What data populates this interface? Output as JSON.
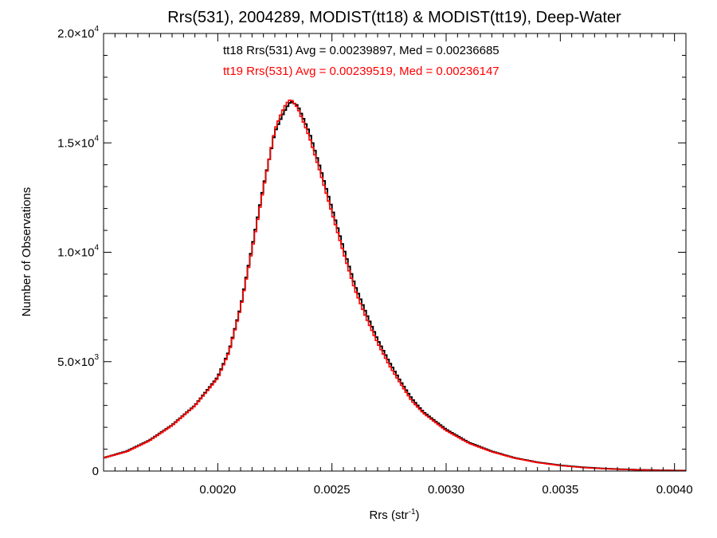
{
  "chart_data": {
    "type": "line",
    "title": "Rrs(531), 2004289, MODIST(tt18) & MODIST(tt19), Deep-Water",
    "xlabel": {
      "base": "Rrs (str",
      "sup": "-1",
      "tail": ")"
    },
    "ylabel": "Number of Observations",
    "xlim": [
      0.0015,
      0.00405
    ],
    "ylim": [
      0,
      20000
    ],
    "x_ticks": [
      {
        "value": 0.002,
        "label": "0.0020"
      },
      {
        "value": 0.0025,
        "label": "0.0025"
      },
      {
        "value": 0.003,
        "label": "0.0030"
      },
      {
        "value": 0.0035,
        "label": "0.0035"
      },
      {
        "value": 0.004,
        "label": "0.0040"
      }
    ],
    "y_ticks": [
      {
        "value": 0,
        "mant": "0",
        "exp": ""
      },
      {
        "value": 5000,
        "mant": "5.0×10",
        "exp": "3"
      },
      {
        "value": 10000,
        "mant": "1.0×10",
        "exp": "4"
      },
      {
        "value": 15000,
        "mant": "1.5×10",
        "exp": "4"
      },
      {
        "value": 20000,
        "mant": "2.0×10",
        "exp": "4"
      }
    ],
    "annotations": [
      {
        "text": "tt18 Rrs(531) Avg = 0.00239897, Med = 0.00236685",
        "color": "#000000"
      },
      {
        "text": "tt19 Rrs(531) Avg = 0.00239519, Med = 0.00236147",
        "color": "#ff0000"
      }
    ],
    "grid": false,
    "step": true,
    "x": [
      0.0015,
      0.0016,
      0.0017,
      0.0018,
      0.0019,
      0.002,
      0.00205,
      0.0021,
      0.00215,
      0.0022,
      0.00225,
      0.00228,
      0.0023,
      0.00232,
      0.00235,
      0.0024,
      0.00245,
      0.0025,
      0.00255,
      0.0026,
      0.00265,
      0.0027,
      0.00275,
      0.0028,
      0.00285,
      0.0029,
      0.003,
      0.0031,
      0.0032,
      0.0033,
      0.0034,
      0.0035,
      0.0036,
      0.0037,
      0.0038,
      0.0039,
      0.004,
      0.00405
    ],
    "series": [
      {
        "color": "#000000",
        "values": [
          600,
          900,
          1400,
          2100,
          3000,
          4300,
          5500,
          7500,
          10200,
          13000,
          15500,
          16200,
          16600,
          16900,
          16700,
          15500,
          13800,
          12000,
          10200,
          8500,
          7200,
          6000,
          5000,
          4100,
          3300,
          2700,
          1900,
          1300,
          900,
          600,
          400,
          260,
          170,
          110,
          70,
          45,
          25,
          20
        ]
      },
      {
        "color": "#ff0000",
        "values": [
          600,
          880,
          1380,
          2080,
          2980,
          4250,
          5450,
          7450,
          10100,
          12900,
          15600,
          16400,
          16800,
          17000,
          16600,
          15300,
          13600,
          11800,
          10000,
          8300,
          7000,
          5850,
          4850,
          4000,
          3200,
          2650,
          1850,
          1270,
          880,
          590,
          390,
          250,
          160,
          105,
          65,
          40,
          22,
          18
        ]
      }
    ]
  }
}
